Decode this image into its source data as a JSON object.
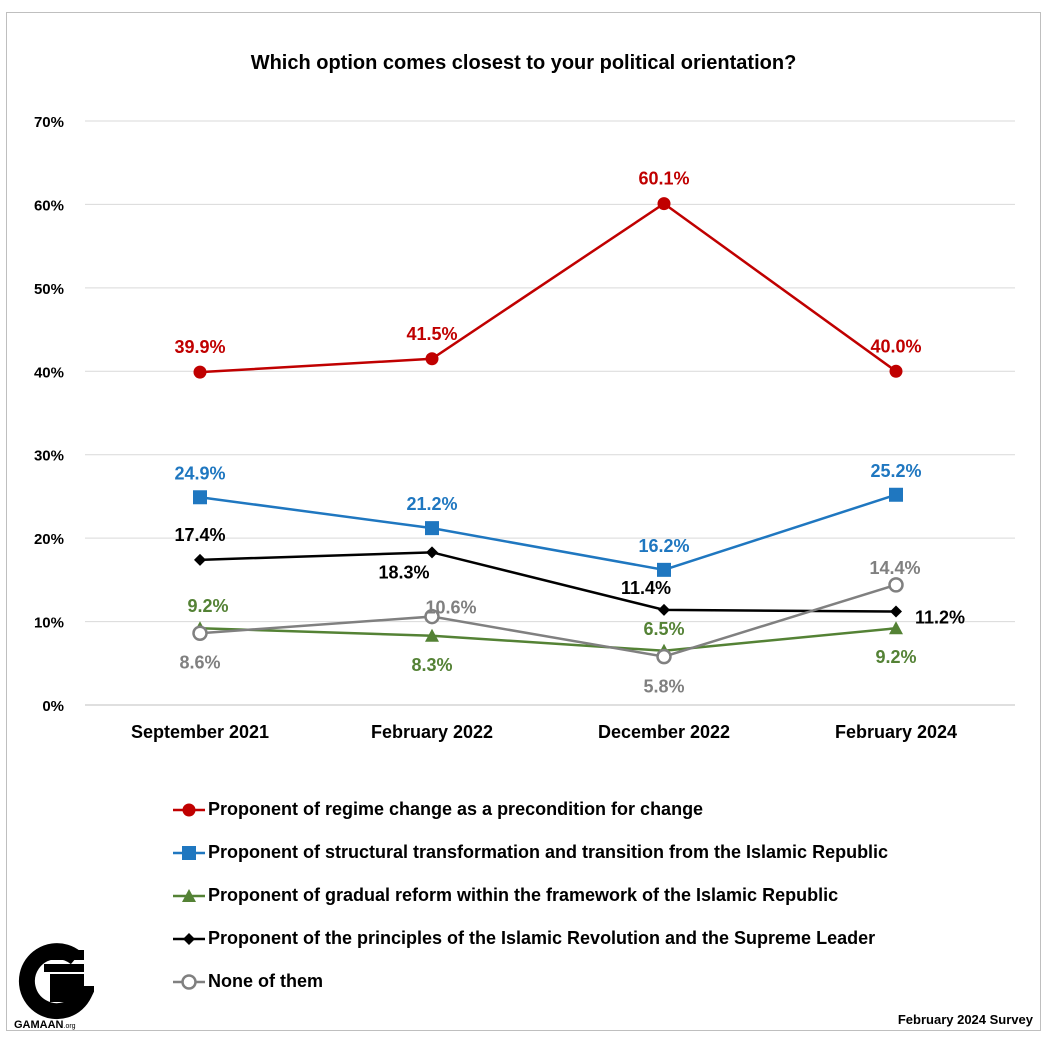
{
  "chart_data": {
    "type": "line",
    "title": "Which option comes closest to your political orientation?",
    "categories": [
      "September 2021",
      "February 2022",
      "December 2022",
      "February 2024"
    ],
    "ylim": [
      0,
      70
    ],
    "yticks": [
      0,
      10,
      20,
      30,
      40,
      50,
      60,
      70
    ],
    "ytick_labels": [
      "0%",
      "10%",
      "20%",
      "30%",
      "40%",
      "50%",
      "60%",
      "70%"
    ],
    "grid": true,
    "legend_position": "bottom",
    "series": [
      {
        "name": "Proponent of regime change as a precondition for change",
        "color": "#c00000",
        "marker": "circle",
        "values": [
          39.9,
          41.5,
          60.1,
          40.0
        ],
        "labels": [
          "39.9%",
          "41.5%",
          "60.1%",
          "40.0%"
        ]
      },
      {
        "name": "Proponent of structural transformation and transition from the Islamic Republic",
        "color": "#1f77c0",
        "marker": "square",
        "values": [
          24.9,
          21.2,
          16.2,
          25.2
        ],
        "labels": [
          "24.9%",
          "21.2%",
          "16.2%",
          "25.2%"
        ]
      },
      {
        "name": "Proponent of gradual reform within the framework of the Islamic Republic",
        "color": "#548235",
        "marker": "triangle",
        "values": [
          9.2,
          8.3,
          6.5,
          9.2
        ],
        "labels": [
          "9.2%",
          "8.3%",
          "6.5%",
          "9.2%"
        ]
      },
      {
        "name": "Proponent of the principles of the Islamic Revolution and the Supreme Leader",
        "color": "#000000",
        "marker": "diamond",
        "values": [
          17.4,
          18.3,
          11.4,
          11.2
        ],
        "labels": [
          "17.4%",
          "18.3%",
          "11.4%",
          "11.2%"
        ]
      },
      {
        "name": "None of them",
        "color": "#808080",
        "marker": "open-circle",
        "values": [
          8.6,
          10.6,
          5.8,
          14.4
        ],
        "labels": [
          "8.6%",
          "10.6%",
          "5.8%",
          "14.4%"
        ]
      }
    ]
  },
  "footer": {
    "brand": "GAMAAN",
    "brand_suffix": ".org",
    "survey": "February 2024 Survey"
  }
}
